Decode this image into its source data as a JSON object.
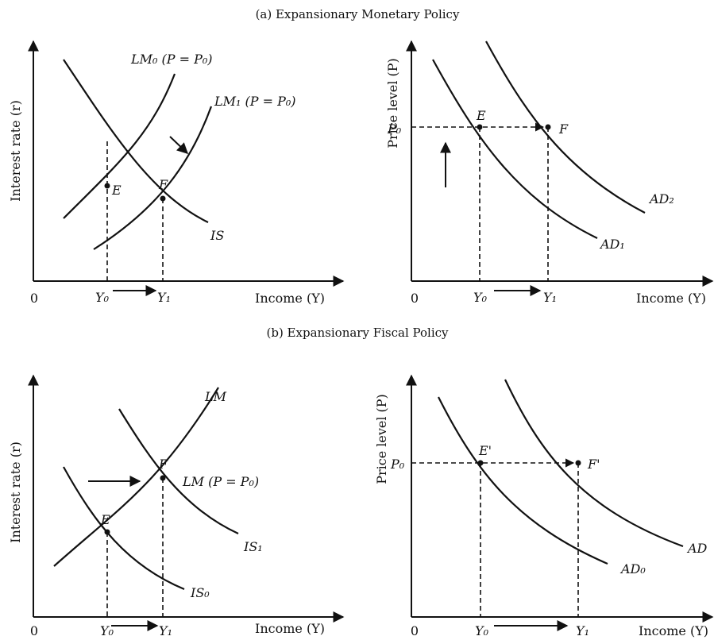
{
  "panel_a": {
    "title": "(a) Expansionary Monetary Policy",
    "left": {
      "ylabel": "Interest rate (r)",
      "xlabel": "Income (Y)",
      "origin": "0",
      "curve_lm0": "LM₀ (P = P₀)",
      "curve_lm1": "LM₁ (P = P₀)",
      "curve_is": "IS",
      "point_e": "E",
      "point_f": "F",
      "tick_y0": "Y₀",
      "tick_y1": "Y₁"
    },
    "right": {
      "ylabel": "Price level (P)",
      "xlabel": "Income (Y)",
      "origin": "0",
      "tick_p0": "P₀",
      "curve_ad1": "AD₁",
      "curve_ad2": "AD₂",
      "point_e": "E",
      "point_f": "F",
      "tick_y0": "Y₀",
      "tick_y1": "Y₁"
    }
  },
  "panel_b": {
    "title": "(b) Expansionary Fiscal Policy",
    "left": {
      "ylabel": "Interest rate (r)",
      "xlabel": "Income (Y)",
      "origin": "0",
      "curve_lm": "LM",
      "curve_lm_full": "LM (P = P₀)",
      "curve_is0": "IS₀",
      "curve_is1": "IS₁",
      "point_e": "E",
      "point_f": "F",
      "tick_y0": "Y₀",
      "tick_y1": "Y₁"
    },
    "right": {
      "ylabel": "Price level (P)",
      "xlabel": "Income (Y)",
      "origin": "0",
      "tick_p0": "P₀",
      "curve_ad0": "AD₀",
      "curve_ad1": "AD",
      "point_e": "E'",
      "point_f": "F'",
      "tick_y0": "Y₀",
      "tick_y1": "Y₁"
    }
  }
}
